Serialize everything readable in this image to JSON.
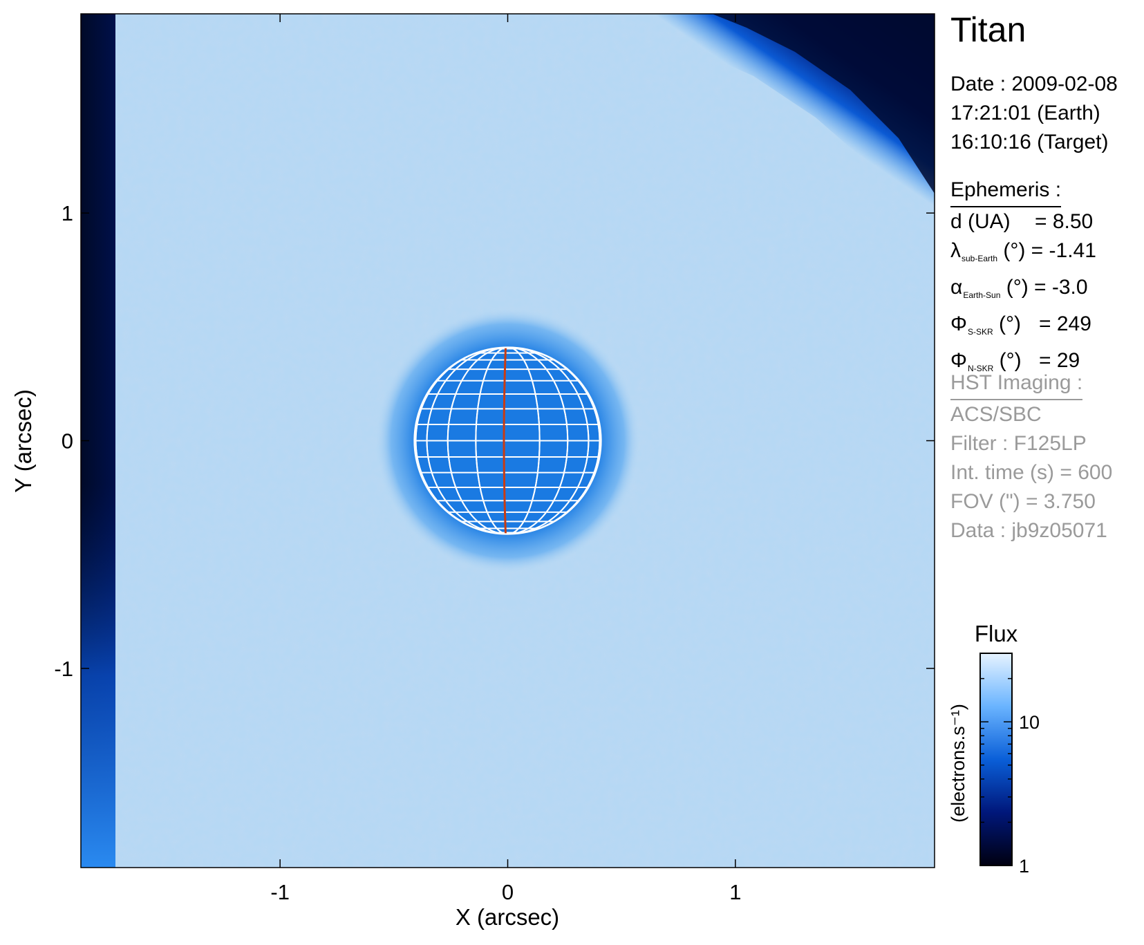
{
  "chart_data": {
    "type": "heatmap",
    "xlabel": "X (arcsec)",
    "ylabel": "Y (arcsec)",
    "xlim": [
      -1.875,
      1.875
    ],
    "ylim": [
      -1.875,
      1.875
    ],
    "xticks": [
      -1,
      0,
      1
    ],
    "yticks": [
      -1,
      0,
      1
    ],
    "xtick_labels": [
      "-1",
      "0",
      "1"
    ],
    "ytick_labels": [
      "1",
      "0",
      "-1"
    ],
    "planet": {
      "center": [
        0,
        0
      ],
      "radius": 0.41
    },
    "graticule_color": "#ffffff",
    "meridian_color": "#c83c14",
    "colorbar": {
      "title": "Flux",
      "label": "(electrons.s⁻¹)",
      "scale": "log",
      "range": [
        1,
        30
      ],
      "ticks": [
        1,
        10
      ],
      "tick_labels": [
        "1",
        "10"
      ],
      "colors": [
        "#000010",
        "#00177a",
        "#0a5fd8",
        "#6ab4ff",
        "#e6f3ff"
      ]
    },
    "image_colors": {
      "background": "#b6d8f4",
      "disk": "#1a7ae2",
      "edge_dark": "#000a28"
    }
  },
  "panel": {
    "title": "Titan",
    "date_line": "Date : 2009-02-08",
    "earth_time": "17:21:01 (Earth)",
    "target_time": "16:10:16 (Target)",
    "ephemeris_header": "Ephemeris :",
    "eph": [
      {
        "sym": "d (UA)",
        "sub": "",
        "unit": "",
        "eq": "= 8.50"
      },
      {
        "sym": "λ",
        "sub": "sub-Earth",
        "unit": "(°)",
        "eq": "= -1.41"
      },
      {
        "sym": "α",
        "sub": "Earth-Sun",
        "unit": "(°)",
        "eq": "= -3.0"
      },
      {
        "sym": "Φ",
        "sub": "S-SKR",
        "unit": "(°)",
        "eq": "= 249"
      },
      {
        "sym": "Φ",
        "sub": "N-SKR",
        "unit": "(°)",
        "eq": "= 29"
      }
    ],
    "hst_header": "HST Imaging :",
    "instrument": "ACS/SBC",
    "filter": "Filter : F125LP",
    "int_time": "Int. time (s) = 600",
    "fov": "FOV (\") = 3.750",
    "data_id": "Data : jb9z05071"
  }
}
